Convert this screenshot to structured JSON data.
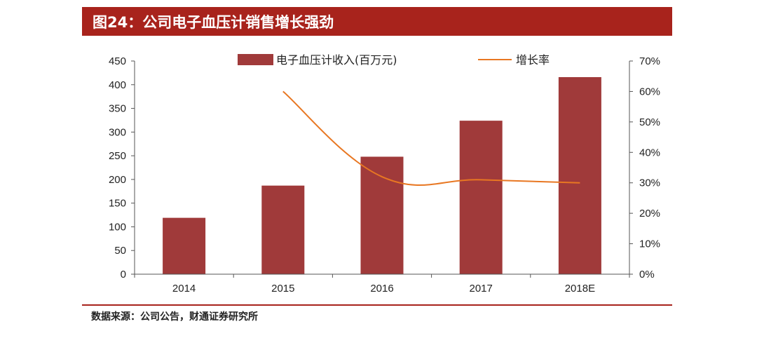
{
  "title": "图24：公司电子血压计销售增长强劲",
  "source": "数据来源：公司公告，财通证券研究所",
  "colors": {
    "accent": "#a8231c",
    "bar": "#a03a3a",
    "line": "#e87722"
  },
  "chart_data": {
    "type": "bar",
    "categories": [
      "2014",
      "2015",
      "2016",
      "2017",
      "2018E"
    ],
    "series": [
      {
        "name": "电子血压计收入(百万元)",
        "type": "bar",
        "axis": "left",
        "values": [
          119,
          187,
          248,
          324,
          416
        ]
      },
      {
        "name": "增长率",
        "type": "line",
        "axis": "right",
        "values": [
          null,
          0.6,
          0.32,
          0.31,
          0.3
        ]
      }
    ],
    "left_axis": {
      "min": 0,
      "max": 450,
      "ticks": [
        "0",
        "50",
        "100",
        "150",
        "200",
        "250",
        "300",
        "350",
        "400",
        "450"
      ]
    },
    "right_axis": {
      "min": 0,
      "max": 0.7,
      "ticks": [
        "0%",
        "10%",
        "20%",
        "30%",
        "40%",
        "50%",
        "60%",
        "70%"
      ]
    },
    "legend": "top-center",
    "grid": false
  }
}
